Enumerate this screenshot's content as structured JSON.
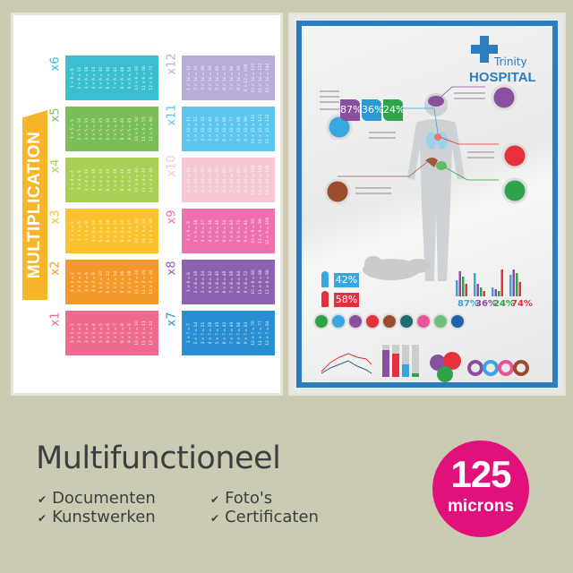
{
  "left_poster": {
    "title": "MULTIPLICATION",
    "banner_color": "#f7b52a",
    "tables": [
      {
        "label": "x6",
        "factor": 6,
        "color": "#3bbfd0",
        "col": 0,
        "row": 0
      },
      {
        "label": "x5",
        "factor": 5,
        "color": "#7bbd57",
        "col": 0,
        "row": 1
      },
      {
        "label": "x4",
        "factor": 4,
        "color": "#a9cf55",
        "col": 0,
        "row": 2
      },
      {
        "label": "x3",
        "factor": 3,
        "color": "#fbc12e",
        "col": 0,
        "row": 3
      },
      {
        "label": "x2",
        "factor": 2,
        "color": "#f5982b",
        "col": 0,
        "row": 4
      },
      {
        "label": "x1",
        "factor": 1,
        "color": "#ee6a8e",
        "col": 0,
        "row": 5
      },
      {
        "label": "x12",
        "factor": 12,
        "color": "#b9acd8",
        "col": 1,
        "row": 0
      },
      {
        "label": "x11",
        "factor": 11,
        "color": "#5cc5ee",
        "col": 1,
        "row": 1
      },
      {
        "label": "x10",
        "factor": 10,
        "color": "#f5c7d0",
        "col": 1,
        "row": 2
      },
      {
        "label": "x9",
        "factor": 9,
        "color": "#ee70ae",
        "col": 1,
        "row": 3
      },
      {
        "label": "x8",
        "factor": 8,
        "color": "#8b62b0",
        "col": 1,
        "row": 4
      },
      {
        "label": "x7",
        "factor": 7,
        "color": "#2a8fd2",
        "col": 1,
        "row": 5
      }
    ]
  },
  "right_poster": {
    "brand_top": "Trinity",
    "brand_main": "HOSPITAL",
    "border_color": "#2a7dc0",
    "top_stats": [
      {
        "value": "87%",
        "color": "#8a4f9e"
      },
      {
        "value": "36%",
        "color": "#2b9ad2"
      },
      {
        "value": "24%",
        "color": "#2fa24a"
      }
    ],
    "gender": [
      {
        "value": "42%",
        "color": "#3aa6df"
      },
      {
        "value": "58%",
        "color": "#e4313d"
      }
    ],
    "bar_stats": [
      {
        "value": "87%",
        "color": "#3aa6df"
      },
      {
        "value": "36%",
        "color": "#8a4f9e"
      },
      {
        "value": "24%",
        "color": "#2fa24a"
      },
      {
        "value": "74%",
        "color": "#e4313d"
      }
    ],
    "icon_row": [
      {
        "icon": "stomach-icon",
        "color": "#2fa24a"
      },
      {
        "icon": "lungs-icon",
        "color": "#3aa6df"
      },
      {
        "icon": "brain-icon",
        "color": "#8a4f9e"
      },
      {
        "icon": "heart-organ-icon",
        "color": "#e4313d"
      },
      {
        "icon": "liver-icon",
        "color": "#9b4d2b"
      },
      {
        "icon": "tooth-icon",
        "color": "#1f6e6c"
      },
      {
        "icon": "heart-icon",
        "color": "#e9559b"
      },
      {
        "icon": "sleep-icon",
        "color": "#6dc07a"
      },
      {
        "icon": "apple-icon",
        "color": "#1f62a8"
      }
    ]
  },
  "footer": {
    "title": "Multifunctioneel",
    "check_icon": "check-icon",
    "features": [
      "Documenten",
      "Kunstwerken",
      "Foto's",
      "Certificaten"
    ],
    "badge": {
      "number": "125",
      "unit": "microns",
      "color": "#e0117a"
    }
  }
}
